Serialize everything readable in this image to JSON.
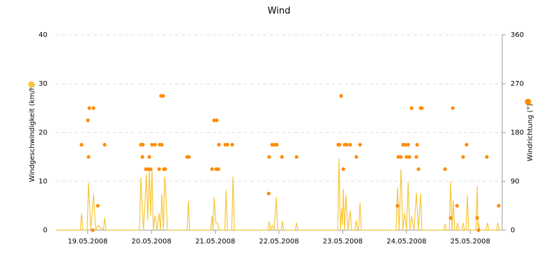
{
  "chart_data": {
    "type": "line",
    "title": "Wind",
    "y_label": "Windgeschwindigkeit (km/h)",
    "y2_label": "Windrichtung (°)",
    "xlim": [
      0,
      168
    ],
    "ylim": [
      0,
      40
    ],
    "y2lim": [
      0,
      360
    ],
    "xticks": [
      {
        "value": 12,
        "label": "19.05.2008"
      },
      {
        "value": 36,
        "label": "20.05.2008"
      },
      {
        "value": 60,
        "label": "21.05.2008"
      },
      {
        "value": 84,
        "label": "22.05.2008"
      },
      {
        "value": 108,
        "label": "23.05.2008"
      },
      {
        "value": 132,
        "label": "24.05.2008"
      },
      {
        "value": 156,
        "label": "25.05.2008"
      }
    ],
    "yticks": [
      0,
      10,
      20,
      30,
      40
    ],
    "y2ticks": [
      0,
      90,
      180,
      270,
      360
    ],
    "grid": true,
    "series": [
      {
        "type": "line",
        "color": "#f8c63a",
        "x": [
          0,
          9.2,
          9.7,
          10.2,
          11.8,
          12.3,
          13.2,
          14.2,
          15.0,
          15.8,
          17.9,
          18.4,
          18.9,
          31.5,
          32.0,
          33.0,
          34.1,
          34.6,
          35.2,
          35.7,
          36.2,
          36.7,
          37.3,
          38.1,
          38.9,
          39.4,
          39.9,
          40.5,
          41.0,
          41.5,
          42.0,
          49.4,
          49.9,
          50.4,
          58.3,
          58.8,
          59.2,
          59.6,
          60.2,
          60.9,
          61.4,
          63.6,
          64.1,
          64.6,
          66.2,
          66.7,
          67.2,
          79.8,
          80.3,
          80.8,
          81.4,
          82.2,
          83.0,
          83.5,
          84.8,
          85.3,
          85.8,
          90.1,
          90.6,
          91.1,
          106.1,
          106.6,
          107.1,
          107.6,
          107.9,
          108.2,
          108.7,
          109.2,
          110.0,
          110.8,
          111.3,
          112.6,
          113.1,
          113.6,
          114.0,
          114.5,
          115.0,
          128.1,
          128.6,
          129.2,
          129.9,
          130.6,
          131.3,
          132.0,
          132.6,
          133.2,
          133.9,
          134.8,
          135.7,
          136.5,
          137.3,
          137.8,
          146.0,
          146.5,
          147.0,
          148.1,
          148.6,
          149.1,
          149.6,
          150.1,
          150.7,
          151.2,
          151.7,
          152.8,
          153.3,
          153.8,
          154.4,
          154.9,
          155.4,
          158.1,
          158.6,
          158.9,
          159.1,
          159.6,
          162.0,
          162.5,
          163.0,
          165.9,
          166.4,
          166.9,
          168
        ],
        "values": [
          0,
          0,
          3.5,
          0,
          0,
          9.7,
          0,
          7.3,
          0,
          1,
          0,
          2.5,
          0,
          0,
          10.8,
          0,
          11.5,
          2,
          12.5,
          3,
          12.5,
          0,
          3,
          0,
          3.5,
          0,
          7.5,
          0,
          11,
          6.5,
          0,
          0,
          6,
          0,
          0,
          3,
          0,
          6.7,
          1.5,
          1.5,
          0,
          0,
          8.2,
          0,
          0,
          11,
          0,
          0,
          1.8,
          0,
          1,
          0,
          6.8,
          0,
          0,
          1.8,
          0,
          0,
          1.5,
          0,
          0,
          14.7,
          0,
          4.5,
          1,
          8.5,
          0,
          7.2,
          0,
          4,
          0,
          0,
          2,
          0,
          0,
          5.7,
          0,
          0,
          8.8,
          0,
          12.5,
          0,
          3.5,
          0,
          9.8,
          0,
          2.8,
          0,
          7.7,
          0,
          7.5,
          0,
          0,
          1.3,
          0,
          0,
          10,
          0,
          6,
          0,
          0,
          1.5,
          0,
          0,
          1.5,
          0,
          0,
          7.2,
          0,
          0,
          9,
          0,
          1.5,
          0,
          0,
          1.5,
          0,
          0,
          1.5,
          0,
          0
        ]
      },
      {
        "type": "scatter",
        "axis": "y2",
        "color": "#ff8c00",
        "x": [
          9.7,
          12.3,
          12.1,
          12.6,
          14.2,
          15.8,
          18.4,
          13.9,
          32.0,
          32.8,
          32.6,
          33.9,
          34.7,
          35.2,
          35.7,
          36.2,
          37.3,
          38.9,
          39.1,
          39.6,
          40.4,
          39.9,
          40.7,
          41.2,
          49.4,
          50.1,
          58.8,
          59.6,
          60.6,
          60.4,
          61.2,
          61.4,
          63.8,
          64.6,
          66.4,
          80.1,
          80.3,
          81.4,
          82.4,
          83.2,
          85.1,
          90.6,
          106.3,
          106.8,
          107.4,
          108.2,
          108.7,
          109.5,
          110.8,
          113.1,
          114.5,
          128.6,
          128.9,
          129.9,
          130.7,
          131.5,
          132.0,
          132.6,
          133.1,
          133.9,
          136.0,
          135.7,
          136.5,
          137.3,
          137.8,
          146.5,
          148.6,
          149.4,
          151.0,
          153.3,
          154.6,
          158.6,
          159.1,
          162.2,
          166.7
        ],
        "values": [
          157.5,
          135,
          202.5,
          225,
          225,
          45,
          157.5,
          0,
          157.5,
          157.5,
          135,
          112.5,
          112.5,
          135,
          112.5,
          157.5,
          157.5,
          112.5,
          157.5,
          247.5,
          247.5,
          157.5,
          112.5,
          112.5,
          135,
          135,
          112.5,
          202.5,
          202.5,
          112.5,
          112.5,
          157.5,
          157.5,
          157.5,
          157.5,
          67.5,
          135,
          157.5,
          157.5,
          157.5,
          135,
          135,
          157.5,
          157.5,
          247.5,
          112.5,
          157.5,
          157.5,
          157.5,
          135,
          157.5,
          45,
          135,
          135,
          157.5,
          157.5,
          135,
          157.5,
          135,
          225,
          157.5,
          135,
          112.5,
          225,
          225,
          112.5,
          22.5,
          225,
          45,
          135,
          157.5,
          22.5,
          0,
          135,
          45
        ]
      }
    ]
  }
}
